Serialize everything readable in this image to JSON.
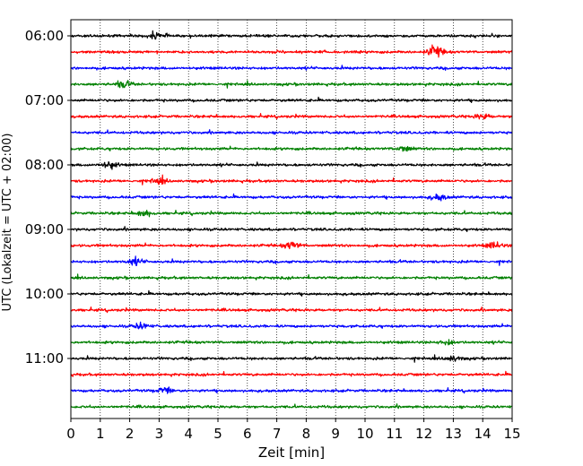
{
  "chart_data": {
    "type": "line",
    "description_kind": "helicorder seismogram",
    "xlabel": "Zeit  [min]",
    "ylabel": "UTC (Lokalzeit = UTC + 02:00)",
    "xlim": [
      0,
      15
    ],
    "x_ticks": [
      0,
      1,
      2,
      3,
      4,
      5,
      6,
      7,
      8,
      9,
      10,
      11,
      12,
      13,
      14,
      15
    ],
    "y_tick_labels": [
      "06:00",
      "07:00",
      "08:00",
      "09:00",
      "10:00",
      "11:00"
    ],
    "grid": "vertical dotted at each minute",
    "trace_colors": [
      "#000000",
      "#ff0000",
      "#0000ff",
      "#008000"
    ],
    "traces": [
      {
        "start": "06:00",
        "color": "#000000",
        "events": [
          {
            "minute": 2.9,
            "amp": 2.2
          }
        ]
      },
      {
        "start": "06:15",
        "color": "#ff0000",
        "events": [
          {
            "minute": 12.4,
            "amp": 3.0
          }
        ]
      },
      {
        "start": "06:30",
        "color": "#0000ff",
        "events": []
      },
      {
        "start": "06:45",
        "color": "#008000",
        "events": [
          {
            "minute": 1.8,
            "amp": 1.6
          }
        ]
      },
      {
        "start": "07:00",
        "color": "#000000",
        "events": []
      },
      {
        "start": "07:15",
        "color": "#ff0000",
        "events": [
          {
            "minute": 14.0,
            "amp": 1.3
          }
        ]
      },
      {
        "start": "07:30",
        "color": "#0000ff",
        "events": []
      },
      {
        "start": "07:45",
        "color": "#008000",
        "events": [
          {
            "minute": 11.3,
            "amp": 1.4
          }
        ]
      },
      {
        "start": "08:00",
        "color": "#000000",
        "events": [
          {
            "minute": 1.3,
            "amp": 1.8
          }
        ]
      },
      {
        "start": "08:15",
        "color": "#ff0000",
        "events": [
          {
            "minute": 3.0,
            "amp": 1.4
          }
        ]
      },
      {
        "start": "08:30",
        "color": "#0000ff",
        "events": [
          {
            "minute": 12.5,
            "amp": 1.6
          }
        ]
      },
      {
        "start": "08:45",
        "color": "#008000",
        "events": [
          {
            "minute": 2.5,
            "amp": 1.5
          }
        ]
      },
      {
        "start": "09:00",
        "color": "#000000",
        "events": []
      },
      {
        "start": "09:15",
        "color": "#ff0000",
        "events": [
          {
            "minute": 7.5,
            "amp": 2.0
          },
          {
            "minute": 14.4,
            "amp": 1.6
          }
        ]
      },
      {
        "start": "09:30",
        "color": "#0000ff",
        "events": [
          {
            "minute": 2.2,
            "amp": 1.8
          }
        ]
      },
      {
        "start": "09:45",
        "color": "#008000",
        "events": []
      },
      {
        "start": "10:00",
        "color": "#000000",
        "events": []
      },
      {
        "start": "10:15",
        "color": "#ff0000",
        "events": []
      },
      {
        "start": "10:30",
        "color": "#0000ff",
        "events": [
          {
            "minute": 2.4,
            "amp": 1.5
          }
        ]
      },
      {
        "start": "10:45",
        "color": "#008000",
        "events": [
          {
            "minute": 12.8,
            "amp": 1.3
          }
        ]
      },
      {
        "start": "11:00",
        "color": "#000000",
        "events": [
          {
            "minute": 13.0,
            "amp": 1.4
          }
        ]
      },
      {
        "start": "11:15",
        "color": "#ff0000",
        "events": []
      },
      {
        "start": "11:30",
        "color": "#0000ff",
        "events": [
          {
            "minute": 3.2,
            "amp": 1.5
          }
        ]
      },
      {
        "start": "11:45",
        "color": "#008000",
        "events": []
      }
    ]
  }
}
